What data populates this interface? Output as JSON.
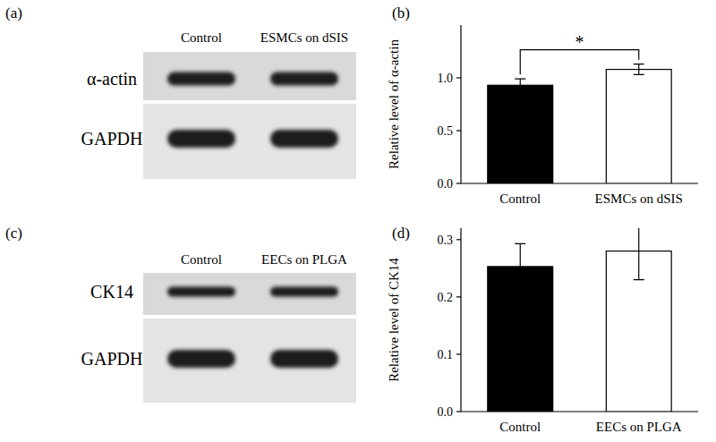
{
  "panel_labels": [
    "(a)",
    "(b)",
    "(c)",
    "(d)"
  ],
  "blots": [
    {
      "lanes": [
        "Control",
        "ESMCs on dSIS"
      ],
      "rows": [
        "α-actin",
        "GAPDH"
      ]
    },
    {
      "lanes": [
        "Control",
        "EECs on PLGA"
      ],
      "rows": [
        "CK14",
        "GAPDH"
      ]
    }
  ],
  "chart_data": [
    {
      "type": "bar",
      "y_label": "Relative level of α-actin",
      "categories": [
        "Control",
        "ESMCs on dSIS"
      ],
      "values": [
        0.93,
        1.08
      ],
      "errors": [
        0.06,
        0.05
      ],
      "colors": [
        "#000000",
        "#ffffff"
      ],
      "ylim": [
        0,
        1.5
      ],
      "yticks": [
        {
          "value": 0,
          "label": "0.0"
        },
        {
          "value": 0.5,
          "label": "0.5"
        },
        {
          "value": 1,
          "label": "1.0"
        }
      ],
      "annotation": "*"
    },
    {
      "type": "bar",
      "y_label": "Relative level of CK14",
      "categories": [
        "Control",
        "EECs on PLGA"
      ],
      "values": [
        0.253,
        0.28
      ],
      "errors": [
        0.04,
        0.05
      ],
      "colors": [
        "#000000",
        "#ffffff"
      ],
      "ylim": [
        0,
        0.32
      ],
      "yticks": [
        {
          "value": 0,
          "label": "0.0"
        },
        {
          "value": 0.1,
          "label": "0.1"
        },
        {
          "value": 0.2,
          "label": "0.2"
        },
        {
          "value": 0.3,
          "label": "0.3"
        }
      ]
    }
  ]
}
